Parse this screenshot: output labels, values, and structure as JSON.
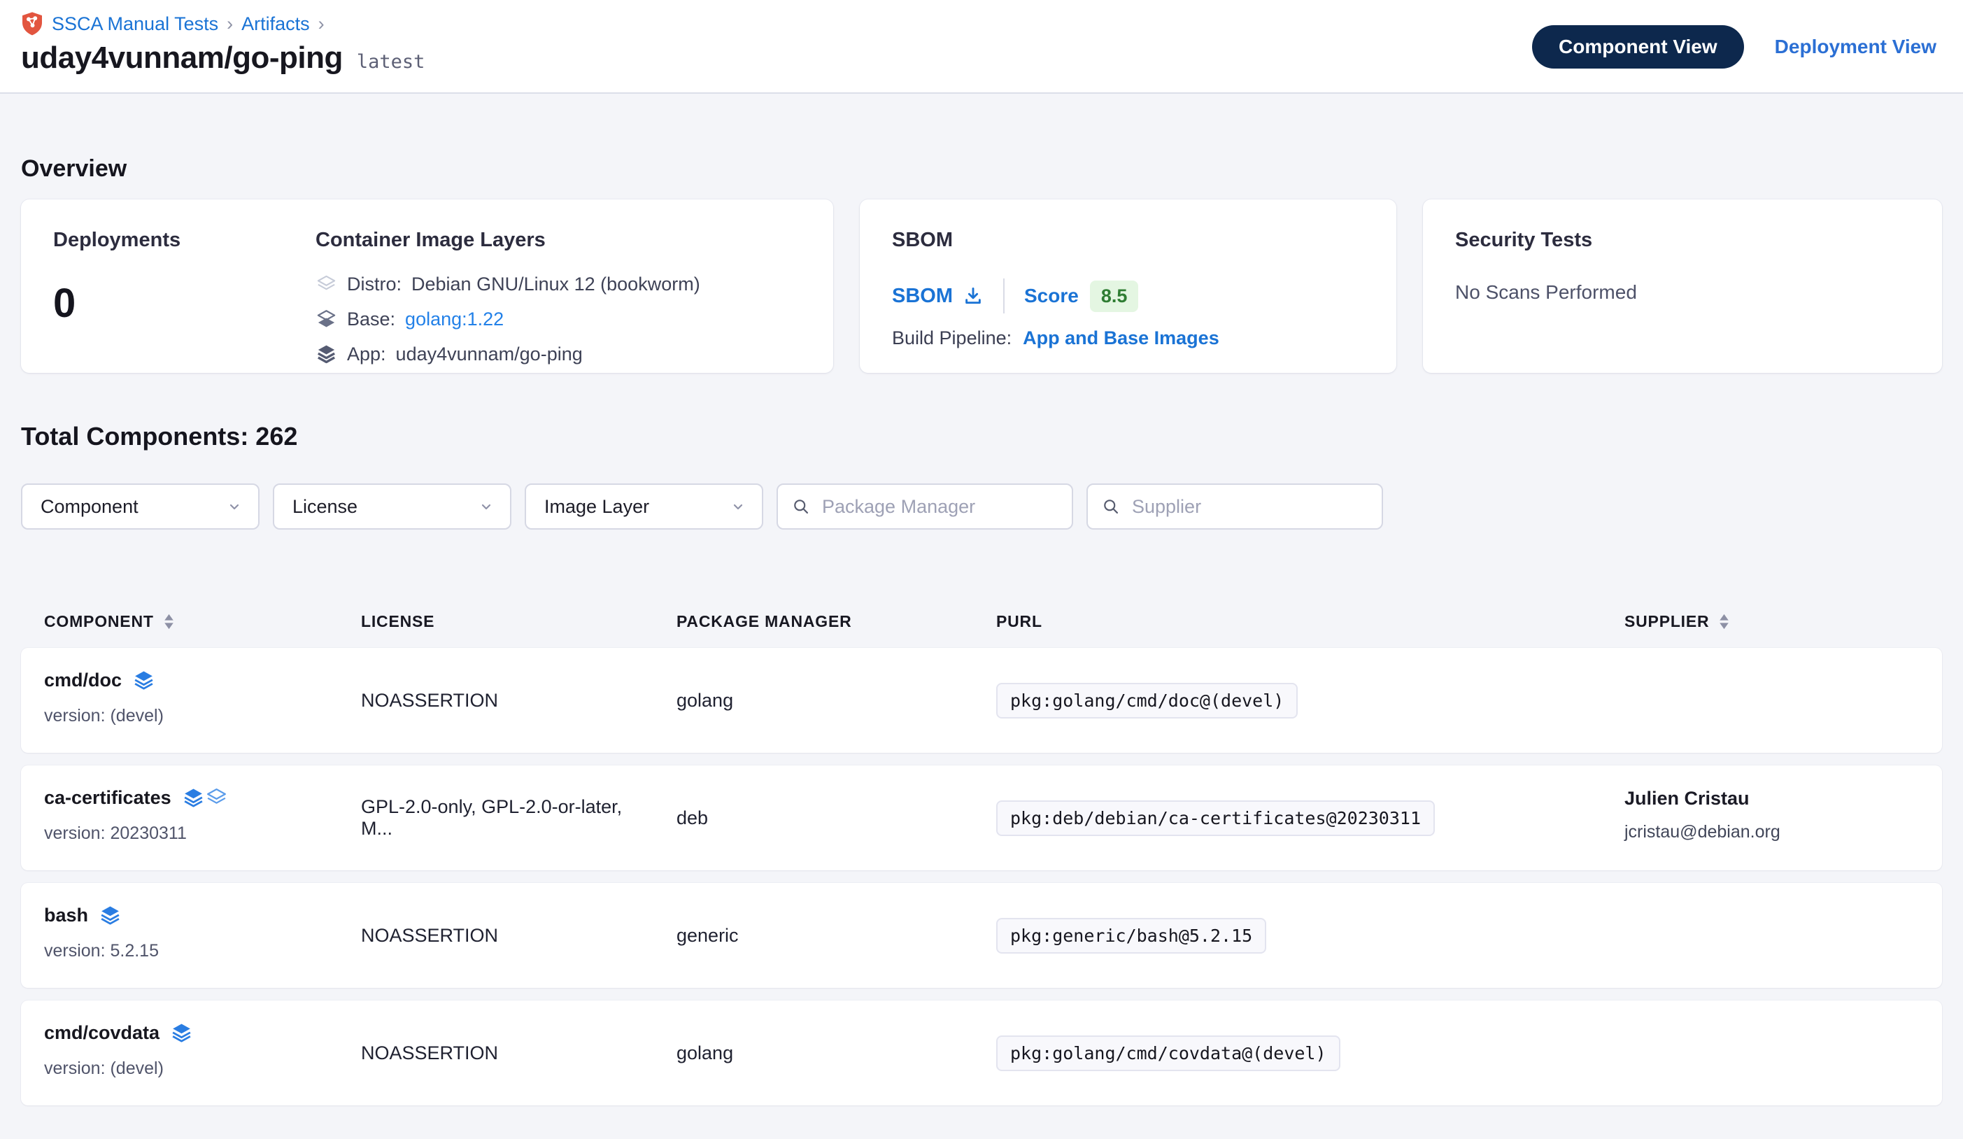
{
  "breadcrumb": {
    "project": "SSCA Manual Tests",
    "section": "Artifacts",
    "separator": "›"
  },
  "header": {
    "title": "uday4vunnam/go-ping",
    "tag": "latest",
    "component_view_label": "Component View",
    "deployment_view_label": "Deployment View"
  },
  "overview": {
    "heading": "Overview",
    "deployments": {
      "label": "Deployments",
      "count": "0"
    },
    "layers": {
      "label": "Container Image Layers",
      "items": [
        {
          "icon": "distro-layer-icon",
          "label": "Distro:",
          "value": "Debian GNU/Linux 12 (bookworm)"
        },
        {
          "icon": "base-layer-icon",
          "label": "Base:",
          "value": "golang:1.22"
        },
        {
          "icon": "app-layer-icon",
          "label": "App:",
          "value": "uday4vunnam/go-ping"
        }
      ]
    },
    "sbom": {
      "label": "SBOM",
      "download_label": "SBOM",
      "score_label": "Score",
      "score": "8.5",
      "build_pipeline_label": "Build Pipeline:",
      "build_pipeline_link": "App and Base Images"
    },
    "security": {
      "label": "Security Tests",
      "empty_text": "No Scans Performed"
    }
  },
  "components": {
    "total_label": "Total Components: 262",
    "filters": {
      "component": "Component",
      "license": "License",
      "image_layer": "Image Layer",
      "package_manager_placeholder": "Package Manager",
      "supplier_placeholder": "Supplier"
    },
    "table": {
      "columns": [
        "COMPONENT",
        "LICENSE",
        "PACKAGE MANAGER",
        "PURL",
        "SUPPLIER"
      ],
      "rows": [
        {
          "name": "cmd/doc",
          "icons": [
            "layers-icon"
          ],
          "version": "version: (devel)",
          "license": "NOASSERTION",
          "package_manager": "golang",
          "purl": "pkg:golang/cmd/doc@(devel)",
          "supplier_name": "",
          "supplier_email": ""
        },
        {
          "name": "ca-certificates",
          "icons": [
            "layers-icon",
            "distro-icon"
          ],
          "version": "version: 20230311",
          "license": "GPL-2.0-only, GPL-2.0-or-later, M...",
          "package_manager": "deb",
          "purl": "pkg:deb/debian/ca-certificates@20230311",
          "supplier_name": "Julien Cristau",
          "supplier_email": "jcristau@debian.org"
        },
        {
          "name": "bash",
          "icons": [
            "layers-icon"
          ],
          "version": "version: 5.2.15",
          "license": "NOASSERTION",
          "package_manager": "generic",
          "purl": "pkg:generic/bash@5.2.15",
          "supplier_name": "",
          "supplier_email": ""
        },
        {
          "name": "cmd/covdata",
          "icons": [
            "layers-icon"
          ],
          "version": "version: (devel)",
          "license": "NOASSERTION",
          "package_manager": "golang",
          "purl": "pkg:golang/cmd/covdata@(devel)",
          "supplier_name": "",
          "supplier_email": ""
        }
      ]
    }
  },
  "colors": {
    "accent_blue": "#1a73d5",
    "pill_navy": "#0d284d",
    "score_badge_bg": "#e4f6e2",
    "score_badge_text": "#2f7d33",
    "component_icon_blue": "#2a7de2"
  }
}
